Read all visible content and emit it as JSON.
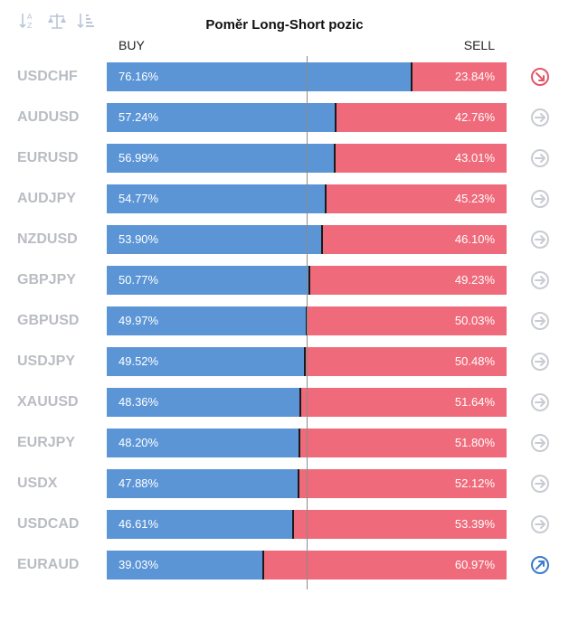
{
  "title": "Poměr Long-Short pozic",
  "headers": {
    "buy": "BUY",
    "sell": "SELL"
  },
  "toolbar": [
    {
      "name": "sort-alphabetical-icon"
    },
    {
      "name": "balance-scale-icon"
    },
    {
      "name": "sort-descending-icon"
    }
  ],
  "colors": {
    "buy": "#5b95d6",
    "sell": "#ef6b7b",
    "label": "#b9bcc2",
    "trend_up": "#3a7cc9",
    "trend_down": "#e4566a",
    "trend_neutral": "#c8cbd1"
  },
  "chart_data": {
    "type": "bar",
    "stacked": true,
    "orientation": "horizontal",
    "categories": [
      "USDCHF",
      "AUDUSD",
      "EURUSD",
      "AUDJPY",
      "NZDUSD",
      "GBPJPY",
      "GBPUSD",
      "USDJPY",
      "XAUUSD",
      "EURJPY",
      "USDX",
      "USDCAD",
      "EURAUD"
    ],
    "series": [
      {
        "name": "BUY",
        "values": [
          76.16,
          57.24,
          56.99,
          54.77,
          53.9,
          50.77,
          49.97,
          49.52,
          48.36,
          48.2,
          47.88,
          46.61,
          39.03
        ],
        "labels": [
          "76.16%",
          "57.24%",
          "56.99%",
          "54.77%",
          "53.90%",
          "50.77%",
          "49.97%",
          "49.52%",
          "48.36%",
          "48.20%",
          "47.88%",
          "46.61%",
          "39.03%"
        ]
      },
      {
        "name": "SELL",
        "values": [
          23.84,
          42.76,
          43.01,
          45.23,
          46.1,
          49.23,
          50.03,
          50.48,
          51.64,
          51.8,
          52.12,
          53.39,
          60.97
        ],
        "labels": [
          "23.84%",
          "42.76%",
          "43.01%",
          "45.23%",
          "46.10%",
          "49.23%",
          "50.03%",
          "50.48%",
          "51.64%",
          "51.80%",
          "52.12%",
          "53.39%",
          "60.97%"
        ]
      }
    ],
    "trends": [
      "down",
      "neutral",
      "neutral",
      "neutral",
      "neutral",
      "neutral",
      "neutral",
      "neutral",
      "neutral",
      "neutral",
      "neutral",
      "neutral",
      "up"
    ],
    "xlim": [
      0,
      100
    ]
  }
}
